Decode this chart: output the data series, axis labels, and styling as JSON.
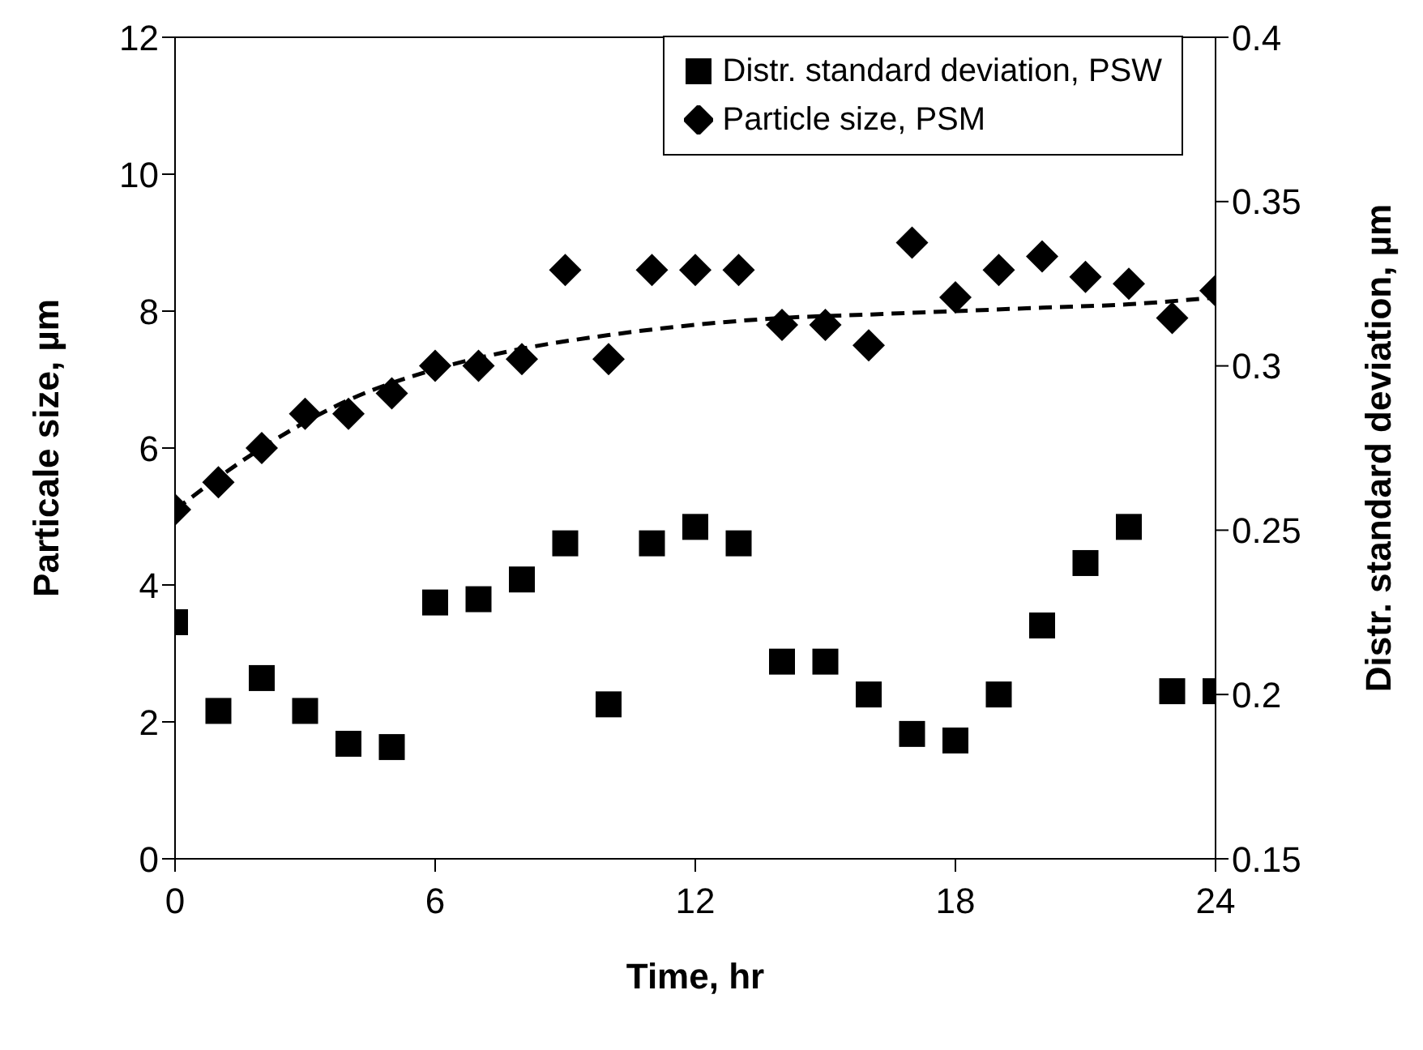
{
  "chart_data": {
    "type": "scatter",
    "xlabel": "Time, hr",
    "ylabel": "Particale size, µm",
    "y2label": "Distr. standard deviation, µm",
    "x": [
      0,
      1,
      2,
      3,
      4,
      5,
      6,
      7,
      8,
      9,
      10,
      11,
      12,
      13,
      14,
      15,
      16,
      17,
      18,
      19,
      20,
      21,
      22,
      23,
      24
    ],
    "series": [
      {
        "name": "Distr. standard deviation, PSW",
        "color": "#000000",
        "marker": "square",
        "axis": "y2",
        "values": [
          0.222,
          0.195,
          0.205,
          0.195,
          0.185,
          0.184,
          0.228,
          0.229,
          0.235,
          0.246,
          0.197,
          0.246,
          0.251,
          0.246,
          0.21,
          0.21,
          0.2,
          0.188,
          0.186,
          0.2,
          0.221,
          0.24,
          0.251,
          0.201,
          0.201
        ]
      },
      {
        "name": "Particle size, PSM",
        "color": "#000000",
        "marker": "diamond",
        "values": [
          5.1,
          5.5,
          6.0,
          6.5,
          6.5,
          6.8,
          7.2,
          7.2,
          7.3,
          8.6,
          7.3,
          8.6,
          8.6,
          8.6,
          7.8,
          7.8,
          7.5,
          9.0,
          8.2,
          8.6,
          8.8,
          8.5,
          8.4,
          7.9,
          8.3
        ]
      },
      {
        "type": "line",
        "color": "#000000",
        "line_style": "dashed",
        "marker": "none",
        "x": [
          0,
          2,
          4,
          6,
          8,
          10,
          12,
          14,
          16,
          18,
          20,
          22,
          24
        ],
        "values": [
          5.1,
          6.0,
          6.7,
          7.15,
          7.45,
          7.65,
          7.8,
          7.9,
          7.95,
          8.0,
          8.05,
          8.1,
          8.2
        ]
      }
    ],
    "xlim": [
      0,
      24
    ],
    "xticks": [
      0,
      6,
      12,
      18,
      24
    ],
    "ylim": [
      0,
      12
    ],
    "yticks": [
      0,
      2,
      4,
      6,
      8,
      10,
      12
    ],
    "y2lim": [
      0.15,
      0.4
    ],
    "y2ticks": [
      0.15,
      {
        "value": 0.2,
        "label": "0.2"
      },
      0.25,
      {
        "value": 0.3,
        "label": "0.3"
      },
      0.35,
      {
        "value": 0.4,
        "label": "0.4"
      }
    ],
    "grid": false,
    "legend": "top right"
  }
}
